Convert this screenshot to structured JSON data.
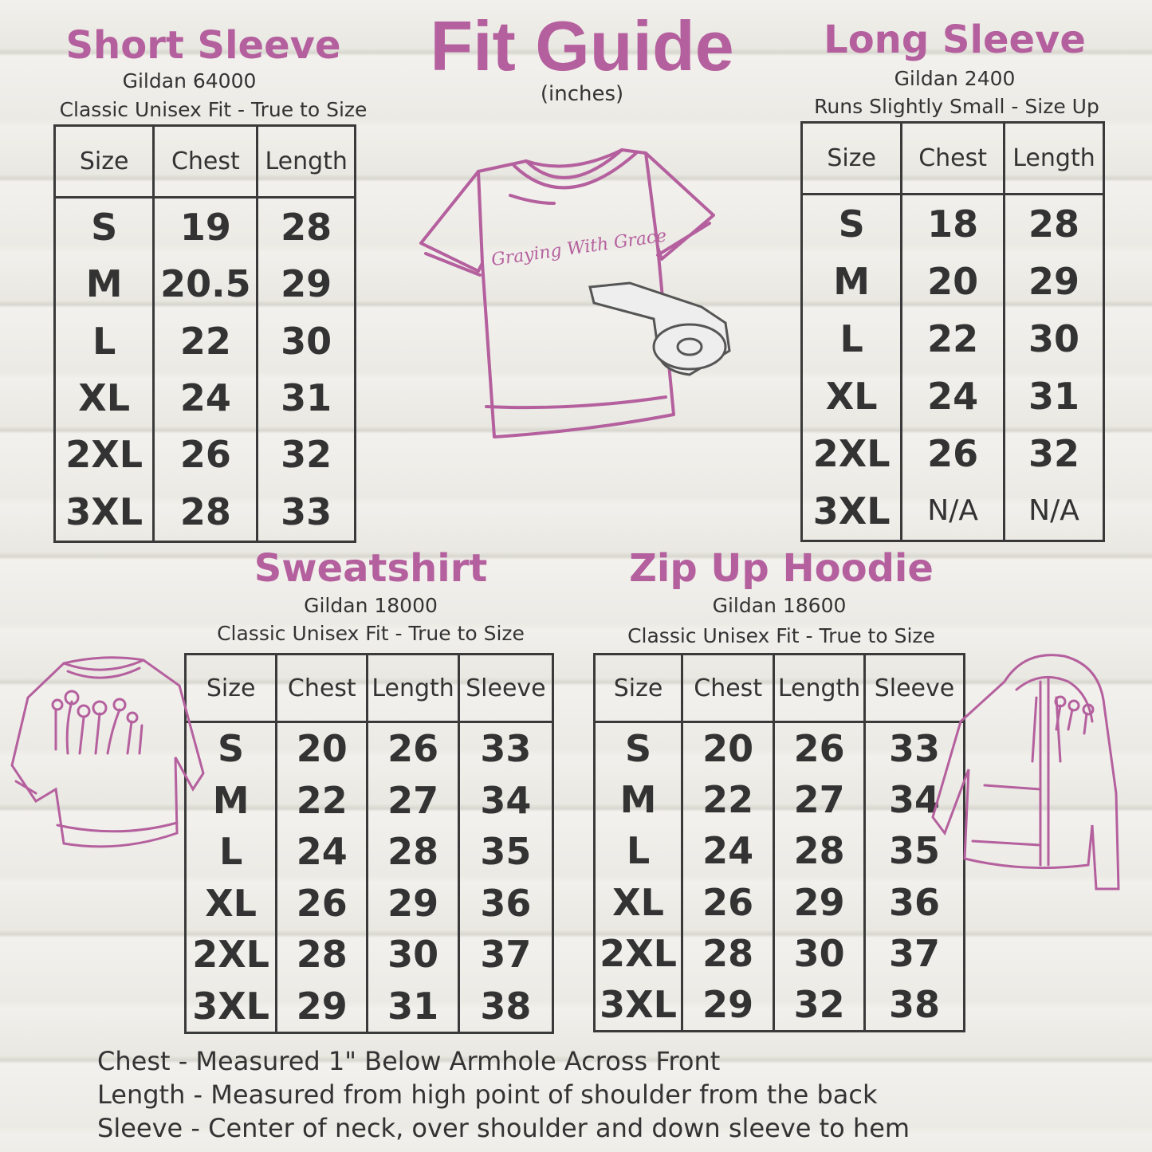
{
  "title": "Fit Guide",
  "unit": "(inches)",
  "accent_color": "#b5609e",
  "text_color": "#333333",
  "brand_logo": "Graying With Grace",
  "short_sleeve": {
    "title": "Short Sleeve",
    "model": "Gildan 64000",
    "fit": "Classic Unisex Fit - True to Size",
    "headers": [
      "Size",
      "Chest",
      "Length"
    ],
    "rows": [
      [
        "S",
        "19",
        "28"
      ],
      [
        "M",
        "20.5",
        "29"
      ],
      [
        "L",
        "22",
        "30"
      ],
      [
        "XL",
        "24",
        "31"
      ],
      [
        "2XL",
        "26",
        "32"
      ],
      [
        "3XL",
        "28",
        "33"
      ]
    ]
  },
  "long_sleeve": {
    "title": "Long Sleeve",
    "model": "Gildan 2400",
    "fit": "Runs Slightly Small - Size Up",
    "headers": [
      "Size",
      "Chest",
      "Length"
    ],
    "rows": [
      [
        "S",
        "18",
        "28"
      ],
      [
        "M",
        "20",
        "29"
      ],
      [
        "L",
        "22",
        "30"
      ],
      [
        "XL",
        "24",
        "31"
      ],
      [
        "2XL",
        "26",
        "32"
      ],
      [
        "3XL",
        "N/A",
        "N/A"
      ]
    ]
  },
  "sweatshirt": {
    "title": "Sweatshirt",
    "model": "Gildan 18000",
    "fit": "Classic Unisex Fit - True to Size",
    "headers": [
      "Size",
      "Chest",
      "Length",
      "Sleeve"
    ],
    "rows": [
      [
        "S",
        "20",
        "26",
        "33"
      ],
      [
        "M",
        "22",
        "27",
        "34"
      ],
      [
        "L",
        "24",
        "28",
        "35"
      ],
      [
        "XL",
        "26",
        "29",
        "36"
      ],
      [
        "2XL",
        "28",
        "30",
        "37"
      ],
      [
        "3XL",
        "29",
        "31",
        "38"
      ]
    ]
  },
  "hoodie": {
    "title": "Zip Up Hoodie",
    "model": "Gildan 18600",
    "fit": "Classic Unisex Fit - True to Size",
    "headers": [
      "Size",
      "Chest",
      "Length",
      "Sleeve"
    ],
    "rows": [
      [
        "S",
        "20",
        "26",
        "33"
      ],
      [
        "M",
        "22",
        "27",
        "34"
      ],
      [
        "L",
        "24",
        "28",
        "35"
      ],
      [
        "XL",
        "26",
        "29",
        "36"
      ],
      [
        "2XL",
        "28",
        "30",
        "37"
      ],
      [
        "3XL",
        "29",
        "32",
        "38"
      ]
    ]
  },
  "notes": [
    "Chest - Measured 1\" Below Armhole Across Front",
    "Length - Measured from high point of shoulder from the back",
    "Sleeve - Center of neck, over shoulder and down sleeve to hem"
  ],
  "illustrations": [
    "t-shirt-with-tape-measure",
    "sweatshirt-with-flowers",
    "zip-hoodie-with-flowers"
  ]
}
